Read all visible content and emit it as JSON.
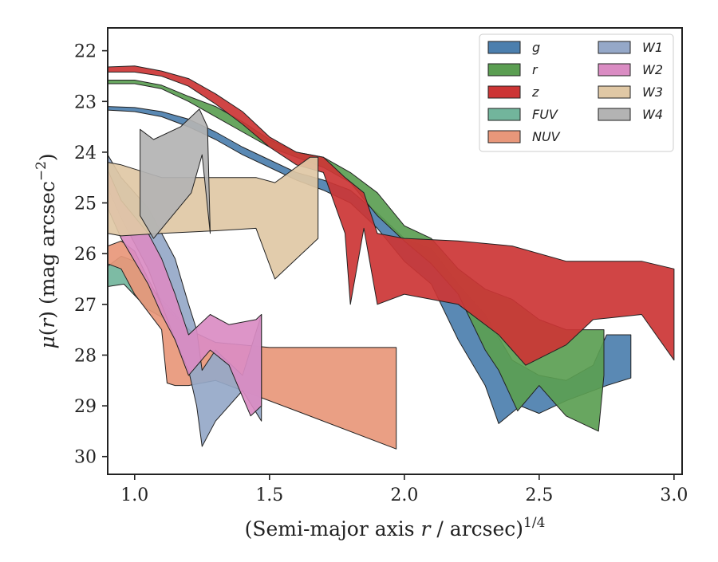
{
  "chart_data": {
    "type": "area",
    "xlabel": "(Semi-major axis r / arcsec)^1/4",
    "xlabel_parts": {
      "main": "(Semi-major axis ",
      "var": "r",
      "rest": " / arcsec)",
      "exp": "1/4"
    },
    "ylabel": "μ(r) (mag arcsec⁻²)",
    "ylabel_parts": {
      "mu": "μ",
      "paren_open": "(",
      "var": "r",
      "paren_close": ")",
      "unit": " (mag arcsec",
      "exp": "−2",
      "unit_close": ")"
    },
    "xlim": [
      0.9,
      3.03
    ],
    "ylim": [
      30.35,
      21.55
    ],
    "y_inverted": true,
    "grid": false,
    "legend_position": "upper right",
    "legend_columns": 2,
    "x_ticks": [
      1.0,
      1.5,
      2.0,
      2.5,
      3.0
    ],
    "x_tick_labels": [
      "1.0",
      "1.5",
      "2.0",
      "2.5",
      "3.0"
    ],
    "y_ticks": [
      22,
      23,
      24,
      25,
      26,
      27,
      28,
      29,
      30
    ],
    "y_tick_labels": [
      "22",
      "23",
      "24",
      "25",
      "26",
      "27",
      "28",
      "29",
      "30"
    ],
    "series": [
      {
        "name": "g",
        "color": "#4c7fae",
        "upper": [
          [
            0.9,
            23.1
          ],
          [
            1.0,
            23.12
          ],
          [
            1.1,
            23.2
          ],
          [
            1.2,
            23.35
          ],
          [
            1.3,
            23.6
          ],
          [
            1.4,
            23.9
          ],
          [
            1.5,
            24.15
          ],
          [
            1.6,
            24.4
          ],
          [
            1.7,
            24.55
          ],
          [
            1.8,
            24.75
          ],
          [
            1.9,
            25.2
          ],
          [
            2.0,
            25.7
          ],
          [
            2.1,
            25.9
          ],
          [
            2.2,
            26.6
          ],
          [
            2.3,
            27.2
          ],
          [
            2.4,
            28.1
          ],
          [
            2.5,
            28.4
          ],
          [
            2.6,
            28.5
          ],
          [
            2.7,
            28.2
          ],
          [
            2.75,
            27.6
          ],
          [
            2.84,
            27.6
          ]
        ],
        "lower": [
          [
            2.84,
            28.45
          ],
          [
            2.75,
            28.6
          ],
          [
            2.6,
            28.9
          ],
          [
            2.5,
            29.15
          ],
          [
            2.43,
            29.0
          ],
          [
            2.35,
            29.35
          ],
          [
            2.3,
            28.6
          ],
          [
            2.2,
            27.7
          ],
          [
            2.1,
            26.6
          ],
          [
            2.0,
            26.15
          ],
          [
            1.9,
            25.5
          ],
          [
            1.8,
            25.0
          ],
          [
            1.7,
            24.75
          ],
          [
            1.6,
            24.55
          ],
          [
            1.5,
            24.3
          ],
          [
            1.4,
            24.05
          ],
          [
            1.3,
            23.75
          ],
          [
            1.2,
            23.5
          ],
          [
            1.1,
            23.3
          ],
          [
            1.0,
            23.2
          ],
          [
            0.9,
            23.17
          ]
        ]
      },
      {
        "name": "r",
        "color": "#5b9e52",
        "upper": [
          [
            0.9,
            22.58
          ],
          [
            1.0,
            22.58
          ],
          [
            1.1,
            22.68
          ],
          [
            1.2,
            22.9
          ],
          [
            1.3,
            23.1
          ],
          [
            1.4,
            23.4
          ],
          [
            1.5,
            23.75
          ],
          [
            1.6,
            24.0
          ],
          [
            1.7,
            24.1
          ],
          [
            1.8,
            24.4
          ],
          [
            1.9,
            24.8
          ],
          [
            2.0,
            25.45
          ],
          [
            2.1,
            25.7
          ],
          [
            2.2,
            26.3
          ],
          [
            2.3,
            26.7
          ],
          [
            2.4,
            26.9
          ],
          [
            2.5,
            27.3
          ],
          [
            2.6,
            27.5
          ],
          [
            2.7,
            27.5
          ],
          [
            2.74,
            27.5
          ]
        ],
        "lower": [
          [
            2.74,
            28.4
          ],
          [
            2.72,
            29.5
          ],
          [
            2.6,
            29.2
          ],
          [
            2.5,
            28.6
          ],
          [
            2.42,
            29.1
          ],
          [
            2.35,
            28.3
          ],
          [
            2.3,
            27.9
          ],
          [
            2.2,
            26.8
          ],
          [
            2.1,
            26.2
          ],
          [
            2.0,
            25.75
          ],
          [
            1.9,
            25.25
          ],
          [
            1.8,
            24.6
          ],
          [
            1.7,
            24.3
          ],
          [
            1.6,
            24.1
          ],
          [
            1.5,
            23.9
          ],
          [
            1.4,
            23.6
          ],
          [
            1.3,
            23.3
          ],
          [
            1.2,
            23.0
          ],
          [
            1.1,
            22.75
          ],
          [
            1.0,
            22.65
          ],
          [
            0.9,
            22.65
          ]
        ]
      },
      {
        "name": "z",
        "color": "#cc3535",
        "upper": [
          [
            0.9,
            22.32
          ],
          [
            1.0,
            22.3
          ],
          [
            1.1,
            22.4
          ],
          [
            1.2,
            22.55
          ],
          [
            1.3,
            22.85
          ],
          [
            1.4,
            23.2
          ],
          [
            1.5,
            23.7
          ],
          [
            1.6,
            24.0
          ],
          [
            1.7,
            24.1
          ],
          [
            1.78,
            24.5
          ],
          [
            1.85,
            24.8
          ],
          [
            1.9,
            25.6
          ],
          [
            2.0,
            25.7
          ],
          [
            2.2,
            25.75
          ],
          [
            2.4,
            25.85
          ],
          [
            2.6,
            26.15
          ],
          [
            2.8,
            26.15
          ],
          [
            2.88,
            26.15
          ],
          [
            3.0,
            26.3
          ]
        ],
        "lower": [
          [
            3.0,
            28.1
          ],
          [
            2.88,
            27.2
          ],
          [
            2.7,
            27.3
          ],
          [
            2.6,
            27.8
          ],
          [
            2.45,
            28.2
          ],
          [
            2.35,
            27.6
          ],
          [
            2.2,
            27.0
          ],
          [
            2.0,
            26.8
          ],
          [
            1.9,
            27.0
          ],
          [
            1.85,
            25.5
          ],
          [
            1.8,
            27.0
          ],
          [
            1.78,
            25.6
          ],
          [
            1.7,
            24.4
          ],
          [
            1.6,
            24.25
          ],
          [
            1.5,
            23.9
          ],
          [
            1.4,
            23.45
          ],
          [
            1.3,
            23.05
          ],
          [
            1.2,
            22.7
          ],
          [
            1.1,
            22.5
          ],
          [
            1.0,
            22.42
          ],
          [
            0.9,
            22.42
          ]
        ]
      },
      {
        "name": "FUV",
        "color": "#72b59c",
        "upper": [
          [
            0.9,
            26.25
          ],
          [
            0.95,
            26.05
          ],
          [
            1.0,
            26.15
          ],
          [
            1.05,
            26.6
          ],
          [
            1.15,
            27.2
          ],
          [
            1.22,
            27.6
          ]
        ],
        "lower": [
          [
            1.22,
            27.9
          ],
          [
            1.15,
            27.4
          ],
          [
            1.05,
            27.1
          ],
          [
            0.96,
            26.6
          ],
          [
            0.9,
            26.65
          ]
        ]
      },
      {
        "name": "NUV",
        "color": "#e8977a",
        "upper": [
          [
            0.9,
            25.85
          ],
          [
            0.95,
            25.75
          ],
          [
            1.0,
            25.95
          ],
          [
            1.05,
            26.5
          ],
          [
            1.1,
            27.0
          ],
          [
            1.2,
            27.5
          ],
          [
            1.3,
            27.75
          ],
          [
            1.5,
            27.85
          ],
          [
            1.97,
            27.85
          ]
        ],
        "lower": [
          [
            1.97,
            29.85
          ],
          [
            1.6,
            29.1
          ],
          [
            1.45,
            28.8
          ],
          [
            1.3,
            28.5
          ],
          [
            1.2,
            28.6
          ],
          [
            1.15,
            28.6
          ],
          [
            1.12,
            28.55
          ],
          [
            1.1,
            27.5
          ],
          [
            1.0,
            26.8
          ],
          [
            0.95,
            26.3
          ],
          [
            0.9,
            26.2
          ]
        ]
      },
      {
        "name": "W1",
        "color": "#95a8c8",
        "upper": [
          [
            0.9,
            24.05
          ],
          [
            0.95,
            24.5
          ],
          [
            1.05,
            25.1
          ],
          [
            1.15,
            26.1
          ],
          [
            1.2,
            27.0
          ],
          [
            1.23,
            27.5
          ],
          [
            1.25,
            28.3
          ],
          [
            1.3,
            27.9
          ],
          [
            1.4,
            28.4
          ],
          [
            1.47,
            27.2
          ]
        ],
        "lower": [
          [
            1.47,
            29.3
          ],
          [
            1.4,
            28.7
          ],
          [
            1.3,
            29.3
          ],
          [
            1.25,
            29.8
          ],
          [
            1.23,
            29.0
          ],
          [
            1.2,
            28.3
          ],
          [
            1.15,
            27.7
          ],
          [
            1.05,
            26.3
          ],
          [
            0.95,
            25.3
          ],
          [
            0.9,
            24.7
          ]
        ]
      },
      {
        "name": "W2",
        "color": "#da8cc3",
        "upper": [
          [
            0.9,
            24.35
          ],
          [
            0.95,
            24.95
          ],
          [
            1.05,
            25.6
          ],
          [
            1.1,
            26.1
          ],
          [
            1.15,
            26.8
          ],
          [
            1.2,
            27.6
          ],
          [
            1.28,
            27.2
          ],
          [
            1.35,
            27.4
          ],
          [
            1.45,
            27.3
          ],
          [
            1.47,
            27.2
          ]
        ],
        "lower": [
          [
            1.47,
            29.0
          ],
          [
            1.43,
            29.2
          ],
          [
            1.35,
            28.2
          ],
          [
            1.28,
            27.9
          ],
          [
            1.2,
            28.4
          ],
          [
            1.15,
            27.7
          ],
          [
            1.1,
            27.2
          ],
          [
            1.05,
            26.6
          ],
          [
            0.95,
            25.7
          ],
          [
            0.9,
            25.1
          ]
        ]
      },
      {
        "name": "W3",
        "color": "#e0c8a5",
        "upper": [
          [
            0.9,
            24.2
          ],
          [
            0.95,
            24.25
          ],
          [
            1.1,
            24.5
          ],
          [
            1.3,
            24.5
          ],
          [
            1.45,
            24.5
          ],
          [
            1.52,
            24.6
          ],
          [
            1.65,
            24.1
          ],
          [
            1.68,
            24.1
          ]
        ],
        "lower": [
          [
            1.68,
            25.7
          ],
          [
            1.52,
            26.5
          ],
          [
            1.45,
            25.5
          ],
          [
            1.3,
            25.55
          ],
          [
            1.1,
            25.6
          ],
          [
            0.95,
            25.65
          ],
          [
            0.9,
            25.6
          ]
        ]
      },
      {
        "name": "W4",
        "color": "#b3b3b3",
        "upper": [
          [
            1.02,
            23.55
          ],
          [
            1.07,
            23.75
          ],
          [
            1.17,
            23.5
          ],
          [
            1.24,
            23.15
          ],
          [
            1.27,
            23.5
          ],
          [
            1.28,
            25.6
          ]
        ],
        "lower": [
          [
            1.28,
            25.6
          ],
          [
            1.25,
            24.05
          ],
          [
            1.21,
            24.8
          ],
          [
            1.07,
            25.7
          ],
          [
            1.02,
            25.25
          ]
        ]
      }
    ],
    "legend": {
      "columns": [
        [
          {
            "name": "g",
            "color": "#4c7fae"
          },
          {
            "name": "r",
            "color": "#5b9e52"
          },
          {
            "name": "z",
            "color": "#cc3535"
          },
          {
            "name": "FUV",
            "color": "#72b59c"
          },
          {
            "name": "NUV",
            "color": "#e8977a"
          }
        ],
        [
          {
            "name": "W1",
            "color": "#95a8c8"
          },
          {
            "name": "W2",
            "color": "#da8cc3"
          },
          {
            "name": "W3",
            "color": "#e0c8a5"
          },
          {
            "name": "W4",
            "color": "#b3b3b3"
          }
        ]
      ]
    }
  }
}
